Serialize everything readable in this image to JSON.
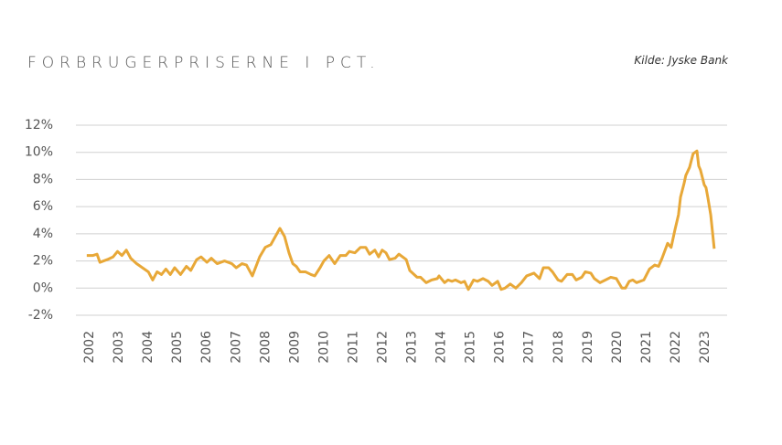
{
  "chart_data": {
    "type": "line",
    "title": "FORBRUGERPRISERNE I PCT.",
    "source": "Kilde: Jyske Bank",
    "color": "#e8a838",
    "grid": true,
    "xlim": [
      2001.53,
      2023.75
    ],
    "xticks": [
      2002,
      2003,
      2004,
      2005,
      2006,
      2007,
      2008,
      2009,
      2010,
      2011,
      2012,
      2013,
      2014,
      2015,
      2016,
      2017,
      2018,
      2019,
      2020,
      2021,
      2022,
      2023
    ],
    "ylim": [
      -2,
      12
    ],
    "yticks": [
      {
        "value": -2,
        "label": "-2%"
      },
      {
        "value": 0,
        "label": "0%"
      },
      {
        "value": 2,
        "label": "2%"
      },
      {
        "value": 4,
        "label": "4%"
      },
      {
        "value": 6,
        "label": "6%"
      },
      {
        "value": 8,
        "label": "8%"
      },
      {
        "value": 10,
        "label": "10%"
      },
      {
        "value": 12,
        "label": "12%"
      }
    ],
    "x": [
      2001.9,
      2002.1,
      2002.25,
      2002.35,
      2002.6,
      2002.8,
      2002.95,
      2003.1,
      2003.25,
      2003.4,
      2003.6,
      2003.8,
      2004.0,
      2004.15,
      2004.3,
      2004.45,
      2004.6,
      2004.75,
      2004.9,
      2005.1,
      2005.3,
      2005.45,
      2005.65,
      2005.8,
      2006.0,
      2006.15,
      2006.35,
      2006.6,
      2006.85,
      2007.0,
      2007.2,
      2007.35,
      2007.55,
      2007.8,
      2007.99,
      2008.18,
      2008.49,
      2008.65,
      2008.8,
      2008.93,
      2009.05,
      2009.18,
      2009.36,
      2009.55,
      2009.68,
      2009.86,
      2009.99,
      2010.17,
      2010.36,
      2010.55,
      2010.74,
      2010.86,
      2011.05,
      2011.24,
      2011.42,
      2011.55,
      2011.73,
      2011.86,
      2011.98,
      2012.11,
      2012.23,
      2012.42,
      2012.55,
      2012.8,
      2012.92,
      2013.17,
      2013.29,
      2013.48,
      2013.67,
      2013.86,
      2013.92,
      2014.11,
      2014.23,
      2014.36,
      2014.48,
      2014.67,
      2014.79,
      2014.92,
      2015.1,
      2015.23,
      2015.42,
      2015.6,
      2015.73,
      2015.92,
      2016.04,
      2016.17,
      2016.35,
      2016.54,
      2016.73,
      2016.91,
      2017.16,
      2017.35,
      2017.48,
      2017.66,
      2017.79,
      2017.98,
      2018.1,
      2018.29,
      2018.47,
      2018.6,
      2018.79,
      2018.91,
      2019.1,
      2019.22,
      2019.41,
      2019.6,
      2019.78,
      2019.97,
      2020.16,
      2020.28,
      2020.41,
      2020.53,
      2020.66,
      2020.91,
      2021.1,
      2021.28,
      2021.41,
      2021.53,
      2021.72,
      2021.84,
      2021.97,
      2022.09,
      2022.16,
      2022.28,
      2022.34,
      2022.47,
      2022.59,
      2022.72,
      2022.78,
      2022.84,
      2022.97,
      2023.03,
      2023.09,
      2023.19,
      2023.31
    ],
    "values": [
      2.4,
      2.4,
      2.5,
      1.9,
      2.1,
      2.3,
      2.7,
      2.4,
      2.8,
      2.2,
      1.8,
      1.5,
      1.2,
      0.6,
      1.2,
      1.0,
      1.4,
      1.0,
      1.5,
      1.0,
      1.6,
      1.3,
      2.1,
      2.3,
      1.9,
      2.2,
      1.8,
      2.0,
      1.8,
      1.5,
      1.8,
      1.7,
      0.9,
      2.3,
      3.0,
      3.2,
      4.4,
      3.8,
      2.6,
      1.8,
      1.6,
      1.2,
      1.2,
      1.0,
      0.9,
      1.5,
      2.0,
      2.4,
      1.8,
      2.4,
      2.4,
      2.7,
      2.6,
      3.0,
      3.0,
      2.5,
      2.8,
      2.3,
      2.8,
      2.6,
      2.1,
      2.2,
      2.5,
      2.1,
      1.3,
      0.8,
      0.8,
      0.4,
      0.6,
      0.7,
      0.9,
      0.4,
      0.6,
      0.5,
      0.6,
      0.4,
      0.5,
      -0.1,
      0.6,
      0.5,
      0.7,
      0.5,
      0.2,
      0.5,
      -0.1,
      0.0,
      0.3,
      0.0,
      0.4,
      0.9,
      1.1,
      0.7,
      1.5,
      1.5,
      1.2,
      0.6,
      0.5,
      1.0,
      1.0,
      0.6,
      0.8,
      1.2,
      1.1,
      0.7,
      0.4,
      0.6,
      0.8,
      0.7,
      0.0,
      0.0,
      0.5,
      0.6,
      0.4,
      0.6,
      1.4,
      1.7,
      1.6,
      2.2,
      3.3,
      3.0,
      4.3,
      5.4,
      6.7,
      7.7,
      8.3,
      8.9,
      9.9,
      10.1,
      9.0,
      8.7,
      7.6,
      7.4,
      6.7,
      5.4,
      2.9
    ]
  }
}
